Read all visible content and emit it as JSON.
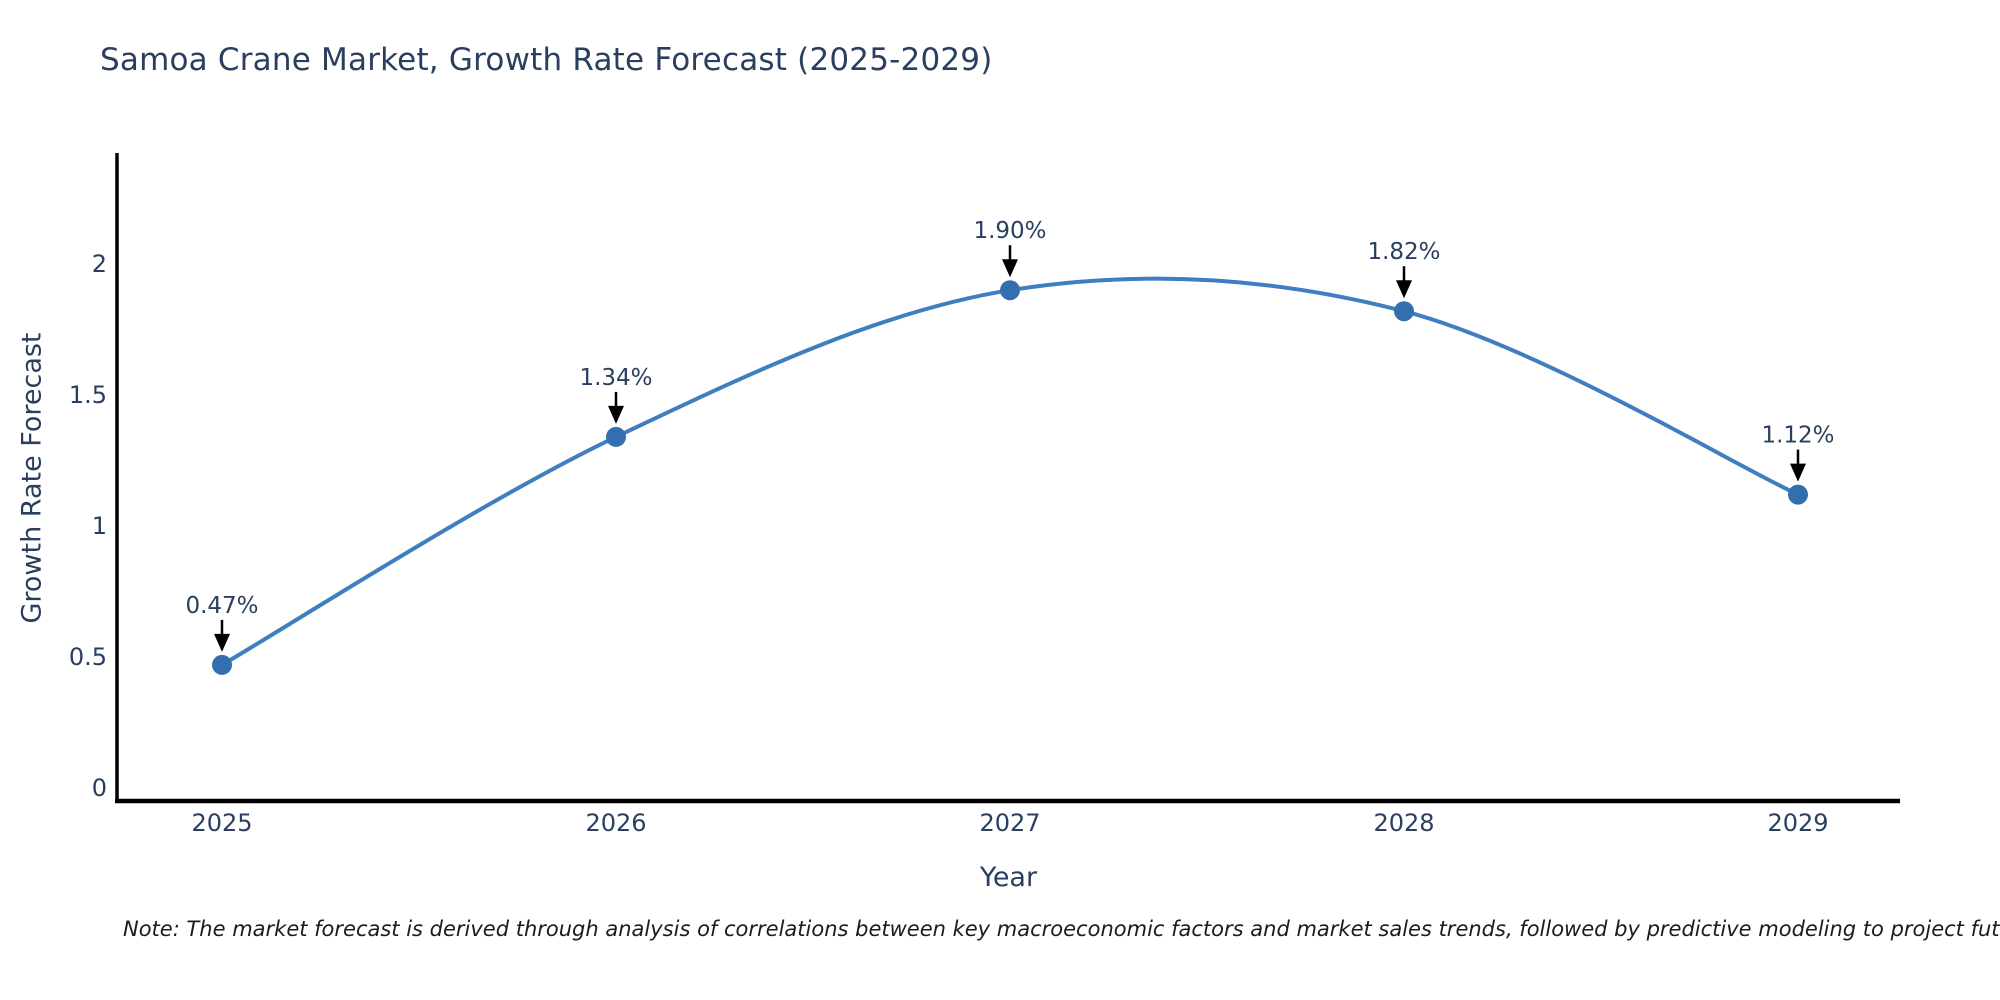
{
  "title": "Samoa Crane Market, Growth Rate Forecast (2025-2029)",
  "note": "Note: The market forecast is derived through analysis of correlations between key macroeconomic factors and market sales trends, followed by predictive modeling to project future sales",
  "chart_data": {
    "type": "line",
    "title": "Samoa Crane Market, Growth Rate Forecast (2025-2029)",
    "xlabel": "Year",
    "ylabel": "Growth Rate Forecast",
    "x": [
      2025,
      2026,
      2027,
      2028,
      2029
    ],
    "values": [
      0.47,
      1.34,
      1.9,
      1.82,
      1.12
    ],
    "point_labels": [
      "0.47%",
      "1.34%",
      "1.90%",
      "1.82%",
      "1.12%"
    ],
    "xtick_labels": [
      "2025",
      "2026",
      "2027",
      "2028",
      "2029"
    ],
    "yticks": [
      0,
      0.5,
      1,
      1.5,
      2
    ],
    "ytick_labels": [
      "0",
      "0.5",
      "1",
      "1.5",
      "2"
    ],
    "xlim": [
      2025,
      2029
    ],
    "ylim": [
      0,
      2.43
    ],
    "grid": false,
    "legend": "none",
    "line_shape": "spline",
    "annotation_arrows": true,
    "colors": {
      "line": "#3f7fbf",
      "marker": "#336fae",
      "axis": "#000000",
      "labels": "#2a3f5f",
      "arrow": "#000000",
      "note": "#1c1c1c",
      "background": "#ffffff"
    }
  }
}
